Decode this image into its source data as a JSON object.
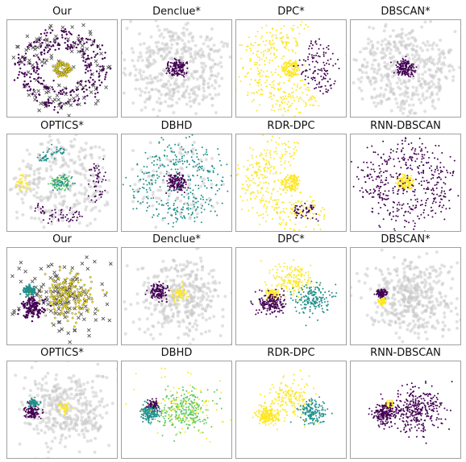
{
  "figure": {
    "colors": {
      "yellow": "#fde725",
      "purple": "#440154",
      "teal": "#21918c",
      "green": "#5ec962",
      "noise": "#c8c8c8",
      "cross": "#555555",
      "frame": "#a0a0a0"
    }
  },
  "chart_data": [
    {
      "type": "scatter",
      "title": "Our",
      "dataset": "rings",
      "style": "our",
      "clusters": [
        {
          "color": "yellow",
          "shape": "ring",
          "cx": 0,
          "cy": 0,
          "r": 0.12,
          "n": 110,
          "spread": 0.03
        },
        {
          "color": "purple",
          "shape": "ring",
          "cx": 0,
          "cy": 0,
          "r": 0.52,
          "n": 140,
          "spread": 0.05
        },
        {
          "color": "purple",
          "shape": "ring",
          "cx": 0,
          "cy": 0,
          "r": 0.78,
          "n": 170,
          "spread": 0.07
        }
      ],
      "noise": {
        "n": 120,
        "kind": "cross"
      }
    },
    {
      "type": "scatter",
      "title": "Denclue*",
      "dataset": "rings",
      "clusters": [
        {
          "color": "purple",
          "shape": "ring",
          "cx": 0,
          "cy": 0,
          "r": 0.12,
          "n": 150,
          "spread": 0.05
        }
      ],
      "noise": {
        "n": 420,
        "kind": "ring"
      }
    },
    {
      "type": "scatter",
      "title": "DPC*",
      "dataset": "rings",
      "clusters": [
        {
          "color": "yellow",
          "shape": "ring",
          "cx": 0,
          "cy": 0,
          "r": 0.12,
          "n": 140,
          "spread": 0.04
        },
        {
          "color": "yellow",
          "shape": "ring",
          "cx": 0,
          "cy": 0,
          "r": 0.7,
          "n": 330,
          "spread": 0.2,
          "arc": [
            1.2,
            5.4
          ]
        },
        {
          "color": "purple",
          "shape": "ring",
          "cx": 0,
          "cy": 0,
          "r": 0.65,
          "n": 120,
          "spread": 0.18,
          "arc": [
            -0.8,
            1.0
          ]
        }
      ],
      "noise": {
        "n": 0,
        "kind": "none"
      }
    },
    {
      "type": "scatter",
      "title": "DBSCAN*",
      "dataset": "rings",
      "clusters": [
        {
          "color": "purple",
          "shape": "ring",
          "cx": 0,
          "cy": 0,
          "r": 0.12,
          "n": 150,
          "spread": 0.05
        }
      ],
      "noise": {
        "n": 420,
        "kind": "ring"
      }
    },
    {
      "type": "scatter",
      "title": "OPTICS*",
      "dataset": "rings",
      "clusters": [
        {
          "color": "green",
          "shape": "ring",
          "cx": 0,
          "cy": 0,
          "r": 0.12,
          "n": 60,
          "spread": 0.05
        },
        {
          "color": "teal",
          "shape": "ring",
          "cx": 0,
          "cy": 0,
          "r": 0.12,
          "n": 50,
          "spread": 0.05
        },
        {
          "color": "purple",
          "shape": "ring",
          "cx": 0,
          "cy": 0,
          "r": 0.72,
          "n": 60,
          "spread": 0.08,
          "arc": [
            3.9,
            5.2
          ]
        },
        {
          "color": "purple",
          "shape": "ring",
          "cx": 0,
          "cy": 0,
          "r": 0.72,
          "n": 50,
          "spread": 0.08,
          "arc": [
            -0.6,
            0.6
          ]
        },
        {
          "color": "teal",
          "shape": "ring",
          "cx": 0,
          "cy": 0,
          "r": 0.68,
          "n": 50,
          "spread": 0.08,
          "arc": [
            1.5,
            2.3
          ]
        },
        {
          "color": "yellow",
          "shape": "ring",
          "cx": 0,
          "cy": 0,
          "r": 0.75,
          "n": 40,
          "spread": 0.06,
          "arc": [
            2.9,
            3.4
          ]
        }
      ],
      "noise": {
        "n": 300,
        "kind": "ring"
      }
    },
    {
      "type": "scatter",
      "title": "DBHD",
      "dataset": "rings",
      "clusters": [
        {
          "color": "purple",
          "shape": "ring",
          "cx": 0,
          "cy": 0,
          "r": 0.12,
          "n": 150,
          "spread": 0.05
        },
        {
          "color": "teal",
          "shape": "ring",
          "cx": 0,
          "cy": 0,
          "r": 0.62,
          "n": 330,
          "spread": 0.2
        }
      ],
      "noise": {
        "n": 100,
        "kind": "ring"
      }
    },
    {
      "type": "scatter",
      "title": "RDR-DPC",
      "dataset": "rings",
      "clusters": [
        {
          "color": "yellow",
          "shape": "ring",
          "cx": 0,
          "cy": 0,
          "r": 0.12,
          "n": 140,
          "spread": 0.04
        },
        {
          "color": "yellow",
          "shape": "ring",
          "cx": 0,
          "cy": 0,
          "r": 0.68,
          "n": 340,
          "spread": 0.2,
          "arc": [
            1.4,
            5.6
          ]
        },
        {
          "color": "purple",
          "shape": "ring",
          "cx": 0,
          "cy": 0,
          "r": 0.68,
          "n": 50,
          "spread": 0.1,
          "arc": [
            4.8,
            5.4
          ]
        }
      ],
      "noise": {
        "n": 0,
        "kind": "none"
      }
    },
    {
      "type": "scatter",
      "title": "RNN-DBSCAN",
      "dataset": "rings",
      "clusters": [
        {
          "color": "yellow",
          "shape": "ring",
          "cx": 0,
          "cy": 0,
          "r": 0.1,
          "n": 150,
          "spread": 0.04
        },
        {
          "color": "purple",
          "shape": "ring",
          "cx": 0,
          "cy": 0,
          "r": 0.62,
          "n": 420,
          "spread": 0.22
        }
      ],
      "noise": {
        "n": 0,
        "kind": "none"
      }
    },
    {
      "type": "scatter",
      "title": "Our",
      "dataset": "blobs",
      "style": "our",
      "clusters": [
        {
          "color": "teal",
          "shape": "blob",
          "cx": -0.62,
          "cy": 0.12,
          "r": 0.09,
          "n": 120
        },
        {
          "color": "purple",
          "shape": "blob",
          "cx": -0.55,
          "cy": -0.25,
          "r": 0.2,
          "n": 140
        },
        {
          "color": "yellow",
          "shape": "blob",
          "cx": 0.1,
          "cy": 0.0,
          "r": 0.42,
          "n": 220
        }
      ],
      "noise": {
        "n": 130,
        "kind": "cross"
      }
    },
    {
      "type": "scatter",
      "title": "Denclue*",
      "dataset": "blobs",
      "clusters": [
        {
          "color": "purple",
          "shape": "blob",
          "cx": -0.35,
          "cy": 0.1,
          "r": 0.15,
          "n": 130
        },
        {
          "color": "yellow",
          "shape": "blob",
          "cx": 0.05,
          "cy": 0.05,
          "r": 0.15,
          "n": 70
        }
      ],
      "noise": {
        "n": 380,
        "kind": "blob"
      }
    },
    {
      "type": "scatter",
      "title": "DPC*",
      "dataset": "blobs",
      "clusters": [
        {
          "color": "yellow",
          "shape": "blob",
          "cx": -0.35,
          "cy": 0.05,
          "r": 0.11,
          "n": 90
        },
        {
          "color": "purple",
          "shape": "blob",
          "cx": -0.38,
          "cy": -0.15,
          "r": 0.22,
          "n": 180
        },
        {
          "color": "yellow",
          "shape": "blob",
          "cx": 0.05,
          "cy": 0.35,
          "r": 0.35,
          "n": 160
        },
        {
          "color": "teal",
          "shape": "blob",
          "cx": 0.4,
          "cy": -0.05,
          "r": 0.3,
          "n": 170
        }
      ],
      "noise": {
        "n": 0,
        "kind": "none"
      }
    },
    {
      "type": "scatter",
      "title": "DBSCAN*",
      "dataset": "blobs",
      "clusters": [
        {
          "color": "purple",
          "shape": "blob",
          "cx": -0.45,
          "cy": 0.05,
          "r": 0.09,
          "n": 120
        },
        {
          "color": "yellow",
          "shape": "blob",
          "cx": -0.45,
          "cy": -0.12,
          "r": 0.07,
          "n": 60
        }
      ],
      "noise": {
        "n": 420,
        "kind": "blob"
      }
    },
    {
      "type": "scatter",
      "title": "OPTICS*",
      "dataset": "blobs",
      "clusters": [
        {
          "color": "teal",
          "shape": "blob",
          "cx": -0.55,
          "cy": 0.15,
          "r": 0.08,
          "n": 90
        },
        {
          "color": "purple",
          "shape": "blob",
          "cx": -0.58,
          "cy": -0.05,
          "r": 0.12,
          "n": 110
        },
        {
          "color": "yellow",
          "shape": "blob",
          "cx": 0.05,
          "cy": 0.05,
          "r": 0.1,
          "n": 40
        }
      ],
      "noise": {
        "n": 380,
        "kind": "blob"
      }
    },
    {
      "type": "scatter",
      "title": "DBHD",
      "dataset": "blobs",
      "clusters": [
        {
          "color": "purple",
          "shape": "blob",
          "cx": -0.45,
          "cy": 0.1,
          "r": 0.09,
          "n": 110
        },
        {
          "color": "teal",
          "shape": "blob",
          "cx": -0.5,
          "cy": -0.1,
          "r": 0.16,
          "n": 150
        },
        {
          "color": "green",
          "shape": "blob",
          "cx": 0.15,
          "cy": 0.0,
          "r": 0.4,
          "n": 260
        },
        {
          "color": "yellow",
          "shape": "blob",
          "cx": 0.2,
          "cy": 0.1,
          "r": 0.65,
          "n": 90
        }
      ],
      "noise": {
        "n": 0,
        "kind": "none"
      }
    },
    {
      "type": "scatter",
      "title": "RDR-DPC",
      "dataset": "blobs",
      "clusters": [
        {
          "color": "yellow",
          "shape": "blob",
          "cx": -0.45,
          "cy": -0.12,
          "r": 0.18,
          "n": 200
        },
        {
          "color": "yellow",
          "shape": "blob",
          "cx": 0.0,
          "cy": 0.25,
          "r": 0.4,
          "n": 170
        },
        {
          "color": "teal",
          "shape": "blob",
          "cx": 0.42,
          "cy": -0.05,
          "r": 0.25,
          "n": 150
        }
      ],
      "noise": {
        "n": 0,
        "kind": "none"
      }
    },
    {
      "type": "scatter",
      "title": "RNN-DBSCAN",
      "dataset": "blobs",
      "clusters": [
        {
          "color": "yellow",
          "shape": "blob",
          "cx": -0.3,
          "cy": 0.12,
          "r": 0.08,
          "n": 50
        },
        {
          "color": "purple",
          "shape": "blob",
          "cx": -0.4,
          "cy": -0.1,
          "r": 0.2,
          "n": 180
        },
        {
          "color": "purple",
          "shape": "blob",
          "cx": 0.2,
          "cy": 0.0,
          "r": 0.45,
          "n": 320
        }
      ],
      "noise": {
        "n": 0,
        "kind": "none"
      }
    }
  ]
}
